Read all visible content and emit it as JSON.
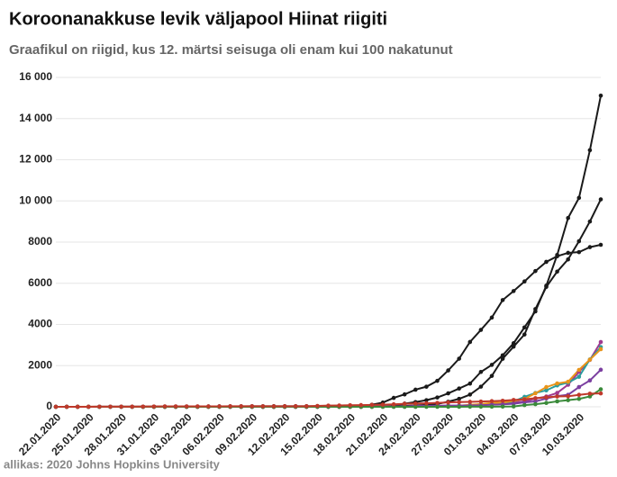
{
  "chart_data": {
    "type": "line",
    "title": "Koroonanakkuse levik väljapool Hiinat riigiti",
    "subtitle": "Graafikul on riigid, kus 12. märtsi seisuga oli enam kui 100 nakatunut",
    "source": "allikas: 2020 Johns Hopkins University",
    "categories": [
      "22.01.2020",
      null,
      null,
      "25.01.2020",
      null,
      null,
      "28.01.2020",
      null,
      null,
      "31.01.2020",
      null,
      null,
      "03.02.2020",
      null,
      null,
      "06.02.2020",
      null,
      null,
      "09.02.2020",
      null,
      null,
      "12.02.2020",
      null,
      null,
      "15.02.2020",
      null,
      null,
      "18.02.2020",
      null,
      null,
      "21.02.2020",
      null,
      null,
      "24.02.2020",
      null,
      null,
      "27.02.2020",
      null,
      null,
      "01.03.2020",
      null,
      null,
      "04.03.2020",
      null,
      null,
      "07.03.2020",
      null,
      null,
      "10.03.2020",
      null,
      null
    ],
    "ylim": [
      0,
      16000
    ],
    "yticks": [
      0,
      2000,
      4000,
      6000,
      8000,
      {
        "value": 10000,
        "label": "10 000"
      },
      {
        "value": 12000,
        "label": "12 000"
      },
      {
        "value": 14000,
        "label": "14 000"
      },
      {
        "value": 16000,
        "label": "16 000"
      }
    ],
    "grid": true,
    "series": [
      {
        "color": "#1a1a1a",
        "values": [
          0,
          0,
          0,
          0,
          0,
          0,
          0,
          0,
          0,
          2,
          2,
          2,
          2,
          2,
          2,
          2,
          2,
          2,
          2,
          2,
          2,
          2,
          3,
          3,
          3,
          3,
          3,
          3,
          3,
          3,
          20,
          62,
          155,
          229,
          322,
          453,
          655,
          888,
          1128,
          1694,
          2036,
          2502,
          3089,
          3858,
          4636,
          5883,
          7375,
          9172,
          10149,
          12462,
          15113
        ]
      },
      {
        "color": "#1a1a1a",
        "values": [
          0,
          0,
          0,
          0,
          0,
          0,
          0,
          0,
          0,
          0,
          0,
          0,
          0,
          0,
          0,
          0,
          0,
          0,
          0,
          0,
          0,
          0,
          0,
          0,
          0,
          0,
          0,
          0,
          2,
          5,
          18,
          28,
          43,
          61,
          95,
          139,
          245,
          388,
          593,
          978,
          1501,
          2336,
          2922,
          3513,
          4747,
          5823,
          6566,
          7161,
          8042,
          9000,
          10075
        ]
      },
      {
        "color": "#1a1a1a",
        "values": [
          1,
          1,
          2,
          2,
          3,
          4,
          4,
          4,
          4,
          11,
          12,
          15,
          15,
          16,
          19,
          23,
          24,
          24,
          25,
          27,
          28,
          28,
          28,
          28,
          28,
          29,
          30,
          31,
          31,
          104,
          204,
          433,
          602,
          833,
          977,
          1261,
          1766,
          2337,
          3150,
          3736,
          4335,
          5186,
          5621,
          6088,
          6593,
          7041,
          7314,
          7478,
          7513,
          7755,
          7869
        ]
      },
      {
        "color": "#a0398f",
        "values": [
          0,
          0,
          0,
          0,
          0,
          0,
          0,
          0,
          0,
          0,
          1,
          1,
          1,
          1,
          1,
          1,
          1,
          1,
          1,
          1,
          1,
          1,
          1,
          1,
          1,
          1,
          1,
          1,
          1,
          1,
          1,
          1,
          1,
          1,
          6,
          13,
          15,
          32,
          45,
          84,
          120,
          165,
          222,
          259,
          400,
          500,
          673,
          1073,
          1695,
          2277,
          3146
        ]
      },
      {
        "color": "#2a9d9d",
        "values": [
          0,
          0,
          0,
          0,
          0,
          0,
          4,
          4,
          4,
          4,
          8,
          8,
          8,
          8,
          8,
          8,
          8,
          8,
          8,
          16,
          16,
          16,
          16,
          16,
          16,
          16,
          16,
          16,
          16,
          16,
          16,
          16,
          16,
          16,
          17,
          27,
          46,
          48,
          79,
          130,
          159,
          196,
          262,
          482,
          670,
          799,
          1040,
          1176,
          1457,
          2300,
          2900
        ]
      },
      {
        "color": "#e8941a",
        "values": [
          0,
          0,
          2,
          3,
          3,
          3,
          3,
          3,
          3,
          5,
          6,
          6,
          6,
          6,
          6,
          6,
          6,
          6,
          11,
          11,
          11,
          11,
          11,
          11,
          11,
          11,
          11,
          11,
          11,
          11,
          11,
          11,
          11,
          12,
          14,
          18,
          38,
          57,
          100,
          130,
          191,
          204,
          288,
          380,
          656,
          957,
          1134,
          1217,
          1792,
          2289,
          2800
        ]
      },
      {
        "color": "#7b3fa0",
        "values": [
          1,
          1,
          2,
          2,
          5,
          5,
          5,
          5,
          5,
          6,
          8,
          8,
          11,
          11,
          11,
          12,
          12,
          12,
          12,
          12,
          13,
          13,
          14,
          15,
          15,
          15,
          15,
          15,
          15,
          15,
          15,
          15,
          15,
          51,
          51,
          57,
          58,
          60,
          68,
          74,
          98,
          118,
          149,
          217,
          262,
          402,
          518,
          583,
          959,
          1281,
          1800
        ]
      },
      {
        "color": "#3a8a3a",
        "values": [
          0,
          0,
          0,
          0,
          0,
          0,
          0,
          0,
          0,
          0,
          0,
          0,
          0,
          0,
          0,
          0,
          0,
          0,
          0,
          0,
          0,
          0,
          0,
          0,
          0,
          0,
          0,
          0,
          0,
          0,
          0,
          0,
          0,
          0,
          0,
          0,
          1,
          1,
          3,
          3,
          7,
          10,
          18,
          82,
          128,
          188,
          265,
          321,
          382,
          503,
          850
        ]
      },
      {
        "color": "#c0392b",
        "values": [
          2,
          2,
          2,
          2,
          4,
          4,
          7,
          7,
          11,
          15,
          20,
          20,
          20,
          22,
          22,
          22,
          25,
          25,
          26,
          26,
          26,
          28,
          28,
          29,
          43,
          59,
          66,
          74,
          84,
          94,
          105,
          122,
          147,
          159,
          170,
          189,
          214,
          228,
          241,
          256,
          274,
          293,
          331,
          360,
          420,
          461,
          502,
          511,
          581,
          639,
          650
        ]
      }
    ]
  }
}
